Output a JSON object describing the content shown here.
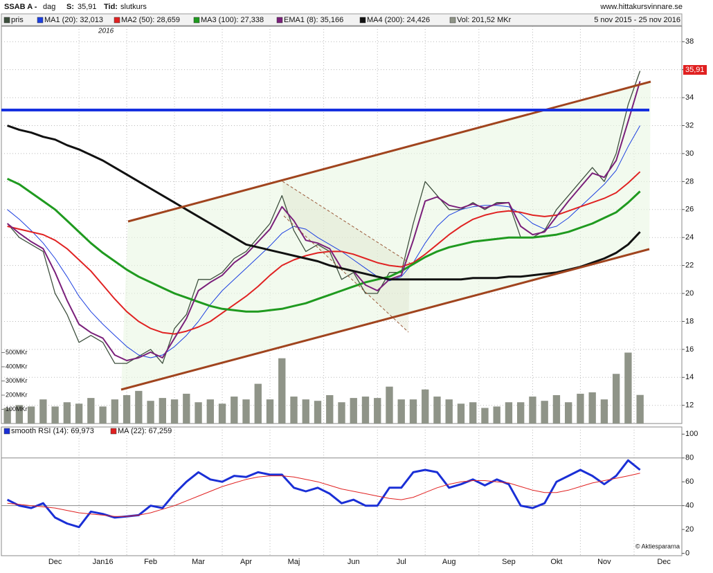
{
  "header": {
    "title": "SSAB A -",
    "interval": "dag",
    "s_label": "S:",
    "s_value": "35,91",
    "tid_label": "Tid:",
    "tid_value": "slutkurs",
    "site": "www.hittakursvinnare.se",
    "period": "5 nov 2015 - 25 nov 2016",
    "year_mark": "2016",
    "price_tag": "35,91",
    "credit": "© Aktiespararna"
  },
  "chart_data": [
    {
      "type": "line",
      "categories": [
        null,
        null,
        null,
        null,
        "Dec",
        null,
        null,
        null,
        "Jan16",
        null,
        null,
        null,
        "Feb",
        null,
        null,
        null,
        "Mar",
        null,
        null,
        null,
        "Apr",
        null,
        null,
        null,
        "Maj",
        null,
        null,
        null,
        null,
        "Jun",
        null,
        null,
        null,
        "Jul",
        null,
        null,
        null,
        "Aug",
        null,
        null,
        null,
        null,
        "Sep",
        null,
        null,
        null,
        "Okt",
        null,
        null,
        null,
        "Nov",
        null,
        null,
        null,
        null,
        "Dec",
        null
      ],
      "ylim": [
        10.7,
        39.1
      ],
      "yticks": [
        12,
        14,
        16,
        18,
        20,
        22,
        24,
        26,
        28,
        30,
        32,
        34,
        36,
        38
      ],
      "y2lim": [
        0,
        2800
      ],
      "y2ticks": [
        {
          "value": 100,
          "label": "100MKr"
        },
        {
          "value": 200,
          "label": "200MKr"
        },
        {
          "value": 300,
          "label": "300MKr"
        },
        {
          "value": 400,
          "label": "400MKr"
        },
        {
          "value": 500,
          "label": "500MKr"
        }
      ],
      "grid": true,
      "series": [
        {
          "name": "pris",
          "color": "#3d4f3d",
          "width": 1.3,
          "values": [
            25,
            24,
            23.5,
            23,
            20,
            18.5,
            16.5,
            17,
            16.5,
            15,
            15,
            15.5,
            16,
            15,
            17.5,
            18.5,
            21,
            21,
            21.5,
            22.5,
            23,
            24,
            25,
            27,
            24.5,
            23,
            23.5,
            23,
            21,
            21.5,
            20,
            20,
            21.5,
            21.5,
            25,
            28,
            27,
            26,
            26,
            26.5,
            26,
            26.5,
            26.5,
            24,
            24,
            24.5,
            26,
            27,
            28,
            29,
            28,
            30,
            33.5,
            35.91,
            null,
            null,
            null
          ]
        },
        {
          "name": "MA1 (20): 32,013",
          "color": "#1c3fe0",
          "width": 1,
          "values": [
            26,
            25.3,
            24.5,
            23.6,
            22.5,
            21.2,
            19.8,
            18.7,
            17.8,
            17,
            16.2,
            15.6,
            15.4,
            15.6,
            16.2,
            17,
            18,
            19.2,
            20.2,
            21,
            21.8,
            22.6,
            23.4,
            24.3,
            24.8,
            24.6,
            24,
            23.5,
            23,
            22.4,
            21.8,
            21.2,
            20.9,
            21.2,
            22.2,
            23.6,
            24.8,
            25.6,
            26,
            26.2,
            26.3,
            26.3,
            26.2,
            25.7,
            25,
            24.6,
            24.8,
            25.4,
            26.2,
            27,
            27.8,
            28.8,
            30.5,
            32,
            null,
            null,
            null
          ]
        },
        {
          "name": "MA2 (50): 28,659",
          "color": "#e02222",
          "width": 2,
          "values": [
            24.8,
            24.6,
            24.4,
            24.2,
            23.8,
            23.2,
            22.4,
            21.6,
            20.6,
            19.6,
            18.7,
            18,
            17.5,
            17.2,
            17.1,
            17.3,
            17.6,
            18,
            18.6,
            19.2,
            19.8,
            20.5,
            21.3,
            22,
            22.4,
            22.7,
            22.9,
            23,
            23,
            22.8,
            22.5,
            22.2,
            22,
            21.9,
            22.2,
            22.8,
            23.5,
            24.2,
            24.8,
            25.3,
            25.6,
            25.8,
            25.9,
            25.8,
            25.6,
            25.5,
            25.6,
            25.9,
            26.2,
            26.5,
            26.8,
            27.2,
            27.9,
            28.7,
            null,
            null,
            null
          ]
        },
        {
          "name": "MA3 (100): 27,338",
          "color": "#1f9a1f",
          "width": 3,
          "values": [
            28.2,
            27.8,
            27.2,
            26.6,
            26,
            25.2,
            24.4,
            23.6,
            22.9,
            22.3,
            21.7,
            21.2,
            20.8,
            20.4,
            20,
            19.7,
            19.4,
            19.1,
            18.9,
            18.8,
            18.7,
            18.7,
            18.8,
            18.9,
            19.1,
            19.3,
            19.6,
            19.9,
            20.2,
            20.5,
            20.8,
            21,
            21.2,
            21.6,
            22.1,
            22.6,
            23,
            23.3,
            23.5,
            23.7,
            23.8,
            23.9,
            24,
            24,
            24,
            24.1,
            24.2,
            24.4,
            24.7,
            25,
            25.4,
            25.8,
            26.5,
            27.3,
            null,
            null,
            null
          ]
        },
        {
          "name": "EMA1 (8): 35,166",
          "color": "#7a1f7a",
          "width": 2,
          "values": [
            25,
            24.3,
            23.7,
            23.2,
            21.5,
            19.5,
            17.8,
            17.2,
            16.8,
            15.6,
            15.2,
            15.4,
            15.8,
            15.4,
            16.8,
            18.2,
            20.2,
            20.8,
            21.3,
            22.2,
            22.8,
            23.7,
            24.6,
            26.2,
            25.2,
            23.8,
            23.6,
            23.2,
            21.8,
            21.6,
            20.6,
            20.2,
            21,
            21.3,
            23.8,
            26.6,
            26.9,
            26.3,
            26.1,
            26.4,
            26.1,
            26.4,
            26.5,
            24.8,
            24.2,
            24.4,
            25.5,
            26.6,
            27.6,
            28.6,
            28.3,
            29.5,
            32.3,
            35.17,
            null,
            null,
            null
          ]
        },
        {
          "name": "MA4 (200): 24,426",
          "color": "#111111",
          "width": 3,
          "values": [
            32,
            31.7,
            31.5,
            31.2,
            31,
            30.6,
            30.3,
            29.9,
            29.5,
            29,
            28.5,
            28,
            27.5,
            27,
            26.5,
            26,
            25.5,
            25,
            24.5,
            24,
            23.5,
            23.3,
            23.1,
            22.9,
            22.7,
            22.5,
            22.3,
            22,
            21.8,
            21.6,
            21.4,
            21.2,
            21,
            21,
            21,
            21,
            21,
            21,
            21,
            21.1,
            21.1,
            21.1,
            21.2,
            21.2,
            21.3,
            21.4,
            21.5,
            21.7,
            21.9,
            22.2,
            22.5,
            22.9,
            23.5,
            24.4,
            null,
            null,
            null
          ]
        },
        {
          "name": "Vol: 201,52 MKr",
          "color": "#8f9488",
          "type": "bar",
          "axis": "y2",
          "values": [
            110,
            130,
            120,
            170,
            120,
            150,
            140,
            180,
            120,
            170,
            200,
            230,
            160,
            180,
            170,
            210,
            150,
            170,
            140,
            190,
            170,
            280,
            170,
            460,
            190,
            170,
            160,
            200,
            150,
            180,
            190,
            180,
            260,
            170,
            170,
            240,
            190,
            170,
            140,
            150,
            110,
            120,
            150,
            150,
            190,
            160,
            200,
            150,
            210,
            220,
            170,
            350,
            500,
            201.52,
            null,
            null,
            null
          ]
        }
      ]
    },
    {
      "type": "line",
      "ylim": [
        -2,
        106
      ],
      "yticks": [
        0,
        20,
        40,
        60,
        80,
        100
      ],
      "hlines": [
        40,
        80
      ],
      "series": [
        {
          "name": "smooth RSI (14): 69,973",
          "color": "#1a2fd6",
          "width": 3,
          "values": [
            45,
            40,
            38,
            42,
            30,
            25,
            22,
            35,
            33,
            30,
            31,
            32,
            40,
            38,
            50,
            60,
            68,
            62,
            60,
            65,
            64,
            68,
            66,
            66,
            55,
            52,
            55,
            50,
            42,
            45,
            40,
            40,
            55,
            55,
            68,
            70,
            68,
            55,
            58,
            62,
            57,
            62,
            58,
            40,
            38,
            42,
            60,
            65,
            70,
            65,
            58,
            65,
            78,
            69.973,
            null,
            null,
            null
          ]
        },
        {
          "name": "MA (22): 67,259",
          "color": "#e02020",
          "width": 1,
          "values": [
            42,
            41,
            40,
            39,
            38,
            36,
            34,
            33,
            32,
            31,
            31,
            32,
            34,
            37,
            40,
            44,
            48,
            52,
            56,
            59,
            62,
            64,
            65,
            65,
            64,
            62,
            60,
            57,
            54,
            52,
            50,
            48,
            46,
            45,
            47,
            51,
            55,
            58,
            60,
            61,
            61,
            60,
            59,
            56,
            53,
            51,
            51,
            53,
            56,
            59,
            61,
            63,
            65,
            67.259,
            null,
            null,
            null
          ]
        }
      ]
    }
  ]
}
